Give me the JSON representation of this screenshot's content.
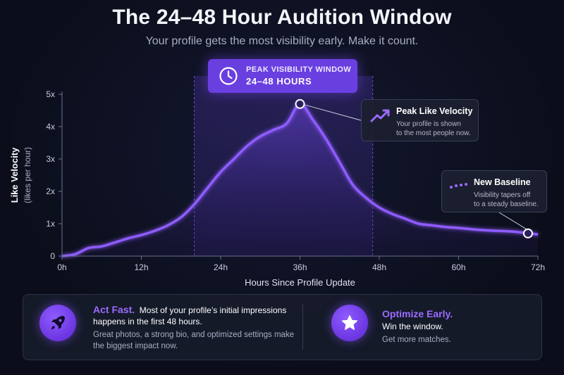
{
  "header": {
    "title": "The 24–48 Hour Audition Window",
    "subtitle": "Your profile gets the most visibility early. Make it count."
  },
  "peak_badge": {
    "line1": "PEAK VISIBILITY WINDOW",
    "line2": "24–48 HOURS",
    "icon": "clock-icon"
  },
  "callouts": {
    "peak": {
      "title": "Peak Like Velocity",
      "body1": "Your profile is shown",
      "body2": "to the most people now.",
      "icon": "trending-up-icon"
    },
    "baseline": {
      "title": "New Baseline",
      "body1": "Visibility tapers off",
      "body2": "to a steady baseline.",
      "icon": "dots-icon"
    }
  },
  "bottom": {
    "left": {
      "headline": "Act Fast.",
      "lead": "Most of your profile’s initial impressions happens in the first 48 hours.",
      "detail": "Great photos, a strong bio, and optimized settings make the biggest impact now.",
      "icon": "rocket-icon"
    },
    "right": {
      "headline": "Optimize Early.",
      "lead": "Win the window.",
      "detail": "Get more matches.",
      "icon": "star-icon"
    }
  },
  "colors": {
    "accent": "#8b5cf6",
    "badge": "#6a3fe0",
    "background": "#0b0e1a"
  },
  "chart_data": {
    "type": "area",
    "title": "The 24–48 Hour Audition Window",
    "xlabel": "Hours Since Profile Update",
    "ylabel": "Like Velocity",
    "ylabel_sub": "(likes per hour)",
    "xlim": [
      0,
      72
    ],
    "ylim": [
      0,
      5
    ],
    "x_ticks": [
      0,
      12,
      24,
      36,
      48,
      60,
      72
    ],
    "x_tick_labels": [
      "0h",
      "12h",
      "24h",
      "36h",
      "48h",
      "60h",
      "72h"
    ],
    "y_ticks": [
      0,
      1,
      2,
      3,
      4,
      5
    ],
    "y_tick_labels": [
      "0",
      "1x",
      "2x",
      "3x",
      "4x",
      "5x"
    ],
    "highlight_range": [
      20,
      47
    ],
    "grid": false,
    "series": [
      {
        "x": [
          0,
          2,
          4,
          6,
          8,
          10,
          12,
          14,
          16,
          18,
          20,
          22,
          24,
          26,
          28,
          30,
          32,
          34,
          36,
          38,
          40,
          42,
          44,
          46,
          48,
          50,
          52,
          54,
          56,
          58,
          60,
          62,
          64,
          66,
          68,
          70,
          72
        ],
        "values": [
          0.0,
          0.06,
          0.25,
          0.3,
          0.42,
          0.55,
          0.65,
          0.78,
          0.95,
          1.2,
          1.6,
          2.1,
          2.6,
          3.0,
          3.4,
          3.7,
          3.9,
          4.1,
          4.7,
          4.2,
          3.6,
          2.9,
          2.2,
          1.8,
          1.5,
          1.3,
          1.15,
          1.0,
          0.95,
          0.9,
          0.87,
          0.83,
          0.8,
          0.78,
          0.76,
          0.72,
          0.67
        ]
      }
    ],
    "annotations": [
      {
        "x": 36,
        "y": 4.7,
        "label": "Peak Like Velocity"
      },
      {
        "x": 70.5,
        "y": 0.7,
        "label": "New Baseline"
      }
    ]
  }
}
